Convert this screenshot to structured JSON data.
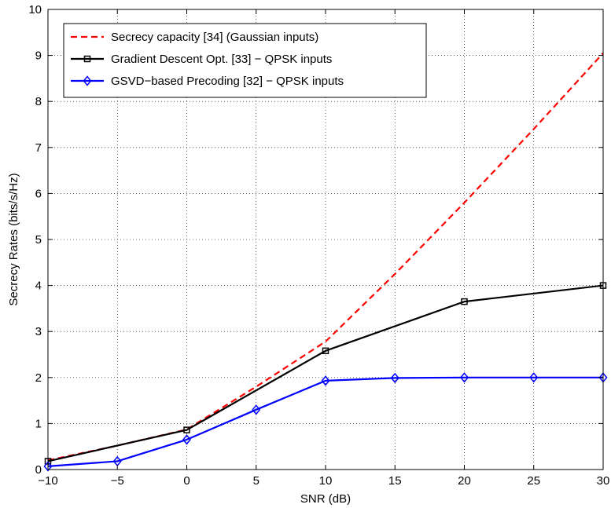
{
  "chart_data": {
    "type": "line",
    "title": "",
    "xlabel": "SNR (dB)",
    "ylabel": "Secrecy Rates (bits/s/Hz)",
    "xlim": [
      -10,
      30
    ],
    "ylim": [
      0,
      10
    ],
    "xticks": [
      -10,
      -5,
      0,
      5,
      10,
      15,
      20,
      25,
      30
    ],
    "xtick_labels": [
      "−10",
      "−5",
      "0",
      "5",
      "10",
      "15",
      "20",
      "25",
      "30"
    ],
    "yticks": [
      0,
      1,
      2,
      3,
      4,
      5,
      6,
      7,
      8,
      9,
      10
    ],
    "ytick_labels": [
      "0",
      "1",
      "2",
      "3",
      "4",
      "5",
      "6",
      "7",
      "8",
      "9",
      "10"
    ],
    "grid": true,
    "legend_position": "top-left",
    "series": [
      {
        "name": "Secrecy capacity [34] (Gaussian inputs)",
        "color": "#ff0000",
        "style": "dashed",
        "marker": "none",
        "x": [
          -10,
          -5,
          0,
          5,
          10,
          15,
          20,
          25,
          30
        ],
        "y": [
          0.2,
          0.52,
          0.87,
          1.8,
          2.78,
          4.25,
          5.8,
          7.4,
          9.05
        ]
      },
      {
        "name": "Gradient Descent Opt. [33] − QPSK inputs",
        "color": "#000000",
        "style": "solid",
        "marker": "square",
        "x": [
          -10,
          0,
          10,
          20,
          30
        ],
        "y": [
          0.18,
          0.86,
          2.58,
          3.65,
          4.0
        ]
      },
      {
        "name": "GSVD−based Precoding [32] − QPSK inputs",
        "color": "#0000ff",
        "style": "solid",
        "marker": "diamond",
        "x": [
          -10,
          -5,
          0,
          5,
          10,
          15,
          20,
          25,
          30
        ],
        "y": [
          0.07,
          0.18,
          0.65,
          1.3,
          1.93,
          1.99,
          2.0,
          2.0,
          2.0
        ]
      }
    ]
  }
}
